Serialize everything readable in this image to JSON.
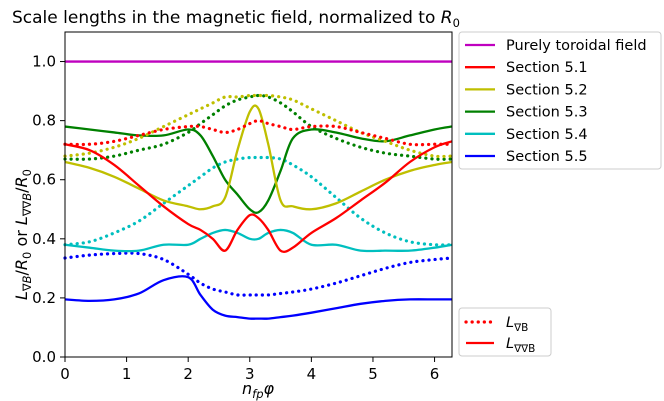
{
  "chart_data": {
    "type": "line",
    "title": "Scale lengths in the magnetic field, normalized to ",
    "title_symbol": "R",
    "title_subscript": "0",
    "xlabel": "n_fp φ",
    "ylabel": "L_∇B/R_0  or  L_∇∇B/R_0",
    "xlim": [
      0,
      6.2832
    ],
    "ylim": [
      0,
      1.1
    ],
    "xticks": [
      "0",
      "1",
      "2",
      "3",
      "4",
      "5",
      "6"
    ],
    "yticks": [
      "0.0",
      "0.2",
      "0.4",
      "0.6",
      "0.8",
      "1.0"
    ],
    "x_samples": [
      0,
      0.4,
      0.8,
      1.2,
      1.6,
      2.0,
      2.2,
      2.4,
      2.6,
      2.8,
      3.0,
      3.1416,
      3.3,
      3.5,
      3.7,
      4.0,
      4.4,
      4.8,
      5.2,
      5.6,
      6.0,
      6.2832
    ],
    "series": [
      {
        "name": "Purely toroidal field",
        "color": "#bf00bf",
        "style": "solid",
        "values": [
          1.0,
          1.0,
          1.0,
          1.0,
          1.0,
          1.0,
          1.0,
          1.0,
          1.0,
          1.0,
          1.0,
          1.0,
          1.0,
          1.0,
          1.0,
          1.0,
          1.0,
          1.0,
          1.0,
          1.0,
          1.0,
          1.0
        ]
      },
      {
        "name": "Section 5.1",
        "color": "#ff0000",
        "style": "solid",
        "values": [
          0.72,
          0.7,
          0.65,
          0.58,
          0.51,
          0.45,
          0.43,
          0.4,
          0.36,
          0.43,
          0.48,
          0.47,
          0.43,
          0.36,
          0.37,
          0.42,
          0.47,
          0.53,
          0.59,
          0.66,
          0.71,
          0.73
        ]
      },
      {
        "name": "Section 5.1 L_∇B",
        "color": "#ff0000",
        "style": "dotted",
        "values": [
          0.72,
          0.72,
          0.73,
          0.75,
          0.77,
          0.78,
          0.78,
          0.77,
          0.76,
          0.77,
          0.79,
          0.8,
          0.79,
          0.78,
          0.77,
          0.78,
          0.78,
          0.76,
          0.74,
          0.72,
          0.72,
          0.72
        ]
      },
      {
        "name": "Section 5.2",
        "color": "#bfbf00",
        "style": "solid",
        "values": [
          0.66,
          0.64,
          0.61,
          0.57,
          0.53,
          0.51,
          0.5,
          0.51,
          0.54,
          0.7,
          0.83,
          0.84,
          0.72,
          0.53,
          0.51,
          0.5,
          0.52,
          0.56,
          0.6,
          0.63,
          0.65,
          0.66
        ]
      },
      {
        "name": "Section 5.2 L_∇B",
        "color": "#bfbf00",
        "style": "dotted",
        "values": [
          0.68,
          0.69,
          0.71,
          0.74,
          0.78,
          0.82,
          0.84,
          0.86,
          0.88,
          0.88,
          0.885,
          0.885,
          0.885,
          0.88,
          0.87,
          0.84,
          0.8,
          0.76,
          0.73,
          0.7,
          0.68,
          0.68
        ]
      },
      {
        "name": "Section 5.3",
        "color": "#008000",
        "style": "solid",
        "values": [
          0.78,
          0.77,
          0.76,
          0.75,
          0.75,
          0.77,
          0.75,
          0.68,
          0.6,
          0.55,
          0.5,
          0.49,
          0.53,
          0.63,
          0.74,
          0.77,
          0.76,
          0.74,
          0.73,
          0.75,
          0.77,
          0.78
        ]
      },
      {
        "name": "Section 5.3 L_∇B",
        "color": "#008000",
        "style": "dotted",
        "values": [
          0.67,
          0.67,
          0.68,
          0.7,
          0.72,
          0.76,
          0.79,
          0.82,
          0.85,
          0.87,
          0.88,
          0.885,
          0.88,
          0.86,
          0.83,
          0.78,
          0.74,
          0.71,
          0.69,
          0.68,
          0.67,
          0.67
        ]
      },
      {
        "name": "Section 5.4",
        "color": "#00bfbf",
        "style": "solid",
        "values": [
          0.38,
          0.37,
          0.36,
          0.36,
          0.38,
          0.38,
          0.4,
          0.42,
          0.43,
          0.42,
          0.4,
          0.4,
          0.42,
          0.43,
          0.42,
          0.38,
          0.38,
          0.36,
          0.36,
          0.36,
          0.37,
          0.38
        ]
      },
      {
        "name": "Section 5.4 L_∇B",
        "color": "#00bfbf",
        "style": "dotted",
        "values": [
          0.38,
          0.39,
          0.42,
          0.46,
          0.52,
          0.58,
          0.61,
          0.64,
          0.66,
          0.67,
          0.675,
          0.675,
          0.675,
          0.67,
          0.65,
          0.61,
          0.54,
          0.47,
          0.42,
          0.39,
          0.38,
          0.38
        ]
      },
      {
        "name": "Section 5.5",
        "color": "#0000ff",
        "style": "solid",
        "values": [
          0.195,
          0.19,
          0.195,
          0.215,
          0.26,
          0.27,
          0.21,
          0.16,
          0.14,
          0.135,
          0.13,
          0.13,
          0.13,
          0.135,
          0.14,
          0.15,
          0.165,
          0.18,
          0.19,
          0.195,
          0.195,
          0.195
        ]
      },
      {
        "name": "Section 5.5 L_∇B",
        "color": "#0000ff",
        "style": "dotted",
        "values": [
          0.335,
          0.345,
          0.35,
          0.35,
          0.33,
          0.28,
          0.25,
          0.23,
          0.22,
          0.21,
          0.21,
          0.21,
          0.21,
          0.215,
          0.22,
          0.23,
          0.25,
          0.275,
          0.3,
          0.32,
          0.33,
          0.335
        ]
      }
    ],
    "legend_main": {
      "position": "top-right-outside",
      "entries": [
        {
          "label": "Purely toroidal field",
          "color": "#bf00bf"
        },
        {
          "label": "Section 5.1",
          "color": "#ff0000"
        },
        {
          "label": "Section 5.2",
          "color": "#bfbf00"
        },
        {
          "label": "Section 5.3",
          "color": "#008000"
        },
        {
          "label": "Section 5.4",
          "color": "#00bfbf"
        },
        {
          "label": "Section 5.5",
          "color": "#0000ff"
        }
      ]
    },
    "legend_style": {
      "position": "bottom-right-outside",
      "entries": [
        {
          "symbol": "L",
          "subscript": "∇B",
          "color": "#ff0000",
          "style": "dotted"
        },
        {
          "symbol": "L",
          "subscript": "∇∇B",
          "color": "#ff0000",
          "style": "solid"
        }
      ]
    }
  }
}
